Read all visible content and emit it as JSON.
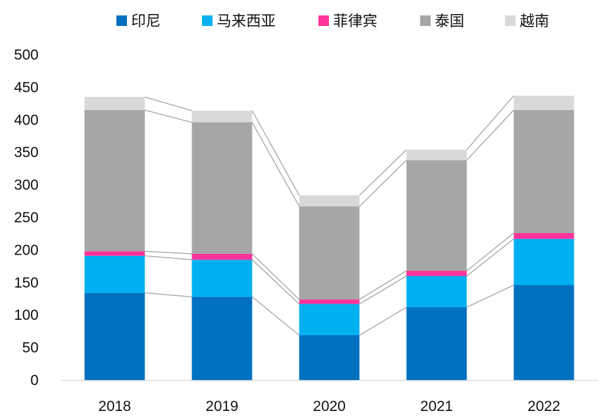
{
  "chart_data": {
    "type": "bar",
    "stacked": true,
    "categories": [
      "2018",
      "2019",
      "2020",
      "2021",
      "2022"
    ],
    "series": [
      {
        "name": "印尼",
        "color": "#0070C0",
        "values": [
          134,
          128,
          69,
          112,
          146
        ]
      },
      {
        "name": "马来西亚",
        "color": "#00B0F0",
        "values": [
          57,
          57,
          48,
          48,
          71
        ]
      },
      {
        "name": "菲律宾",
        "color": "#FF3399",
        "values": [
          7,
          9,
          7,
          8,
          9
        ]
      },
      {
        "name": "泰国",
        "color": "#A6A6A6",
        "values": [
          217,
          202,
          143,
          170,
          189
        ]
      },
      {
        "name": "越南",
        "color": "#D9D9D9",
        "values": [
          20,
          18,
          17,
          16,
          22
        ]
      }
    ],
    "yticks": [
      0,
      50,
      100,
      150,
      200,
      250,
      300,
      350,
      400,
      450,
      500
    ],
    "ylim": [
      0,
      500
    ],
    "legend_position": "top",
    "series_lines": true,
    "grid": false
  }
}
